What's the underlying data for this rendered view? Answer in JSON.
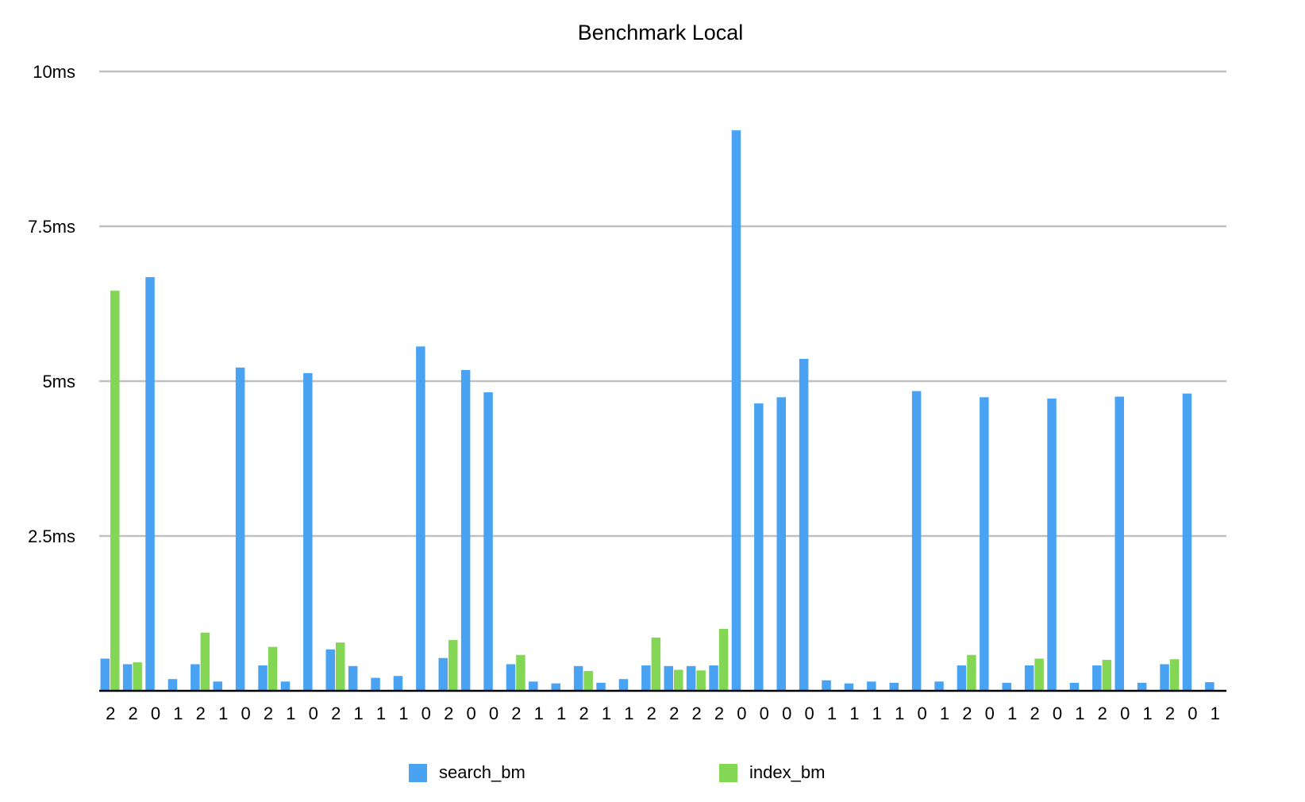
{
  "chart_data": {
    "type": "bar",
    "title": "Benchmark Local",
    "xlabel": "",
    "ylabel": "",
    "ylim": [
      0,
      10
    ],
    "yticks": [
      {
        "value": 2.5,
        "label": "2.5ms"
      },
      {
        "value": 5,
        "label": "5ms"
      },
      {
        "value": 7.5,
        "label": "7.5ms"
      },
      {
        "value": 10,
        "label": "10ms"
      }
    ],
    "grid": true,
    "legend_position": "bottom",
    "categories": [
      "2",
      "2",
      "0",
      "1",
      "2",
      "1",
      "0",
      "2",
      "1",
      "0",
      "2",
      "1",
      "1",
      "1",
      "0",
      "2",
      "0",
      "0",
      "2",
      "1",
      "1",
      "2",
      "1",
      "1",
      "2",
      "2",
      "2",
      "2",
      "0",
      "0",
      "0",
      "0",
      "1",
      "1",
      "1",
      "1",
      "0",
      "1",
      "2",
      "0",
      "1",
      "2",
      "0",
      "1",
      "2",
      "0",
      "1",
      "2",
      "0",
      "1"
    ],
    "series": [
      {
        "name": "search_bm",
        "color": "#4aa3f2",
        "values": [
          0.52,
          0.43,
          6.68,
          0.19,
          0.43,
          0.15,
          5.22,
          0.41,
          0.15,
          5.13,
          0.67,
          0.4,
          0.21,
          0.24,
          5.56,
          0.53,
          5.18,
          4.82,
          0.43,
          0.15,
          0.12,
          0.4,
          0.13,
          0.19,
          0.41,
          0.4,
          0.4,
          0.41,
          9.05,
          4.64,
          4.74,
          5.36,
          0.17,
          0.12,
          0.15,
          0.13,
          4.84,
          0.15,
          0.41,
          4.74,
          0.13,
          0.41,
          4.72,
          0.13,
          0.41,
          4.75,
          0.13,
          0.43,
          4.8,
          0.14
        ]
      },
      {
        "name": "index_bm",
        "color": "#84d655",
        "values": [
          6.46,
          0.46,
          0,
          0,
          0.94,
          0,
          0,
          0.71,
          0,
          0,
          0.78,
          0,
          0,
          0,
          0,
          0.82,
          0,
          0,
          0.58,
          0,
          0,
          0.32,
          0,
          0,
          0.86,
          0.34,
          0.33,
          1.0,
          0,
          0,
          0,
          0,
          0,
          0,
          0,
          0,
          0,
          0,
          0.58,
          0,
          0,
          0.52,
          0,
          0,
          0.5,
          0,
          0,
          0.51,
          0,
          0
        ]
      }
    ]
  }
}
